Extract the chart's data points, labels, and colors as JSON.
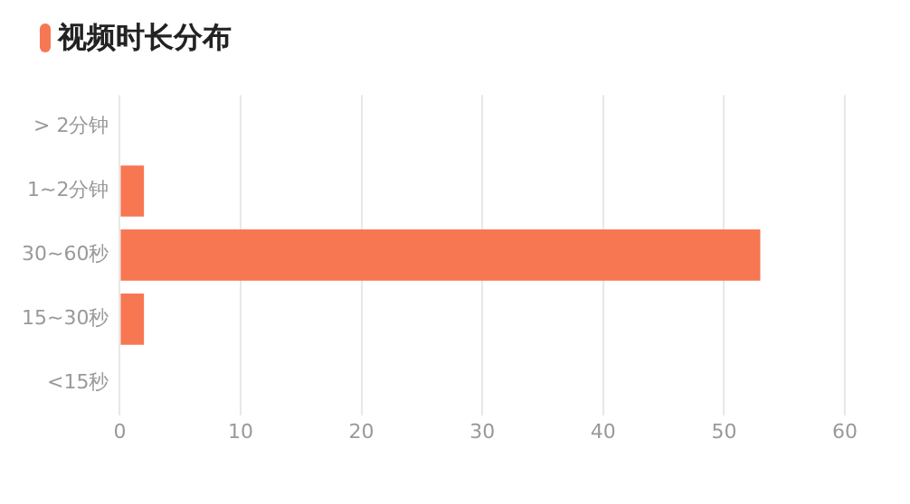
{
  "chart_data": {
    "type": "bar",
    "orientation": "horizontal",
    "title": "视频时长分布",
    "categories": [
      "> 2分钟",
      "1~2分钟",
      "30~60秒",
      "15~30秒",
      "<15秒"
    ],
    "values": [
      0,
      2,
      53,
      2,
      0
    ],
    "color": "#f77753",
    "xlim": [
      0,
      60
    ],
    "xticks": [
      0,
      10,
      20,
      30,
      40,
      50,
      60
    ],
    "grid": "x",
    "legend": false
  }
}
